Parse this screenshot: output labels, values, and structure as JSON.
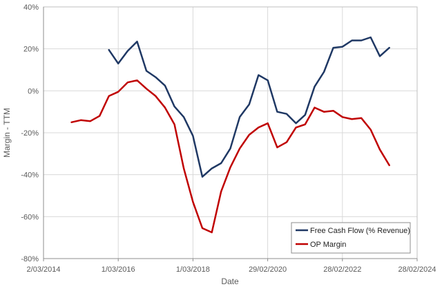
{
  "chart_data": {
    "type": "line",
    "title": "",
    "xlabel": "Date",
    "ylabel": "Margin - TTM",
    "x_ticks": [
      "2/03/2014",
      "1/03/2016",
      "1/03/2018",
      "29/02/2020",
      "28/02/2022",
      "28/02/2024"
    ],
    "y_ticks": [
      "40%",
      "20%",
      "0%",
      "-20%",
      "-40%",
      "-60%",
      "-80%"
    ],
    "ylim": [
      -80,
      40
    ],
    "xlim": [
      "2014-03-02",
      "2024-02-28"
    ],
    "grid": true,
    "legend_position": "bottom-right",
    "series": [
      {
        "name": "Free Cash Flow (% Revenue)",
        "color": "#1f3864",
        "points": [
          [
            "2015-12-01",
            19.5
          ],
          [
            "2016-03-01",
            13.0
          ],
          [
            "2016-06-01",
            19.0
          ],
          [
            "2016-09-01",
            23.5
          ],
          [
            "2016-12-01",
            9.5
          ],
          [
            "2017-03-01",
            6.5
          ],
          [
            "2017-06-01",
            2.5
          ],
          [
            "2017-09-01",
            -7.5
          ],
          [
            "2017-12-01",
            -12.5
          ],
          [
            "2018-03-01",
            -21.5
          ],
          [
            "2018-06-01",
            -41.0
          ],
          [
            "2018-09-01",
            -37.0
          ],
          [
            "2018-12-01",
            -34.5
          ],
          [
            "2019-03-01",
            -27.5
          ],
          [
            "2019-06-01",
            -12.5
          ],
          [
            "2019-09-01",
            -6.5
          ],
          [
            "2019-12-01",
            7.5
          ],
          [
            "2020-03-01",
            5.0
          ],
          [
            "2020-06-01",
            -10.0
          ],
          [
            "2020-09-01",
            -11.0
          ],
          [
            "2020-12-01",
            -15.5
          ],
          [
            "2021-03-01",
            -11.5
          ],
          [
            "2021-06-01",
            2.0
          ],
          [
            "2021-09-01",
            9.0
          ],
          [
            "2021-12-01",
            20.5
          ],
          [
            "2022-03-01",
            21.0
          ],
          [
            "2022-06-01",
            24.0
          ],
          [
            "2022-09-01",
            24.0
          ],
          [
            "2022-12-01",
            25.5
          ],
          [
            "2023-03-01",
            16.5
          ],
          [
            "2023-06-01",
            20.5
          ]
        ]
      },
      {
        "name": "OP Margin",
        "color": "#c00000",
        "points": [
          [
            "2014-12-01",
            -15.0
          ],
          [
            "2015-03-01",
            -14.0
          ],
          [
            "2015-06-01",
            -14.5
          ],
          [
            "2015-09-01",
            -12.0
          ],
          [
            "2015-12-01",
            -2.5
          ],
          [
            "2016-03-01",
            -0.5
          ],
          [
            "2016-06-01",
            4.0
          ],
          [
            "2016-09-01",
            5.0
          ],
          [
            "2016-12-01",
            1.0
          ],
          [
            "2017-03-01",
            -2.5
          ],
          [
            "2017-06-01",
            -8.0
          ],
          [
            "2017-09-01",
            -16.0
          ],
          [
            "2017-12-01",
            -37.0
          ],
          [
            "2018-03-01",
            -53.0
          ],
          [
            "2018-06-01",
            -65.5
          ],
          [
            "2018-09-01",
            -67.5
          ],
          [
            "2018-12-01",
            -48.0
          ],
          [
            "2019-03-01",
            -36.5
          ],
          [
            "2019-06-01",
            -27.5
          ],
          [
            "2019-09-01",
            -21.0
          ],
          [
            "2019-12-01",
            -17.5
          ],
          [
            "2020-03-01",
            -15.5
          ],
          [
            "2020-06-01",
            -27.0
          ],
          [
            "2020-09-01",
            -24.5
          ],
          [
            "2020-12-01",
            -17.5
          ],
          [
            "2021-03-01",
            -16.0
          ],
          [
            "2021-06-01",
            -8.0
          ],
          [
            "2021-09-01",
            -10.0
          ],
          [
            "2021-12-01",
            -9.5
          ],
          [
            "2022-03-01",
            -12.5
          ],
          [
            "2022-06-01",
            -13.5
          ],
          [
            "2022-09-01",
            -13.0
          ],
          [
            "2022-12-01",
            -18.5
          ],
          [
            "2023-03-01",
            -28.0
          ],
          [
            "2023-06-01",
            -35.5
          ]
        ]
      }
    ]
  }
}
